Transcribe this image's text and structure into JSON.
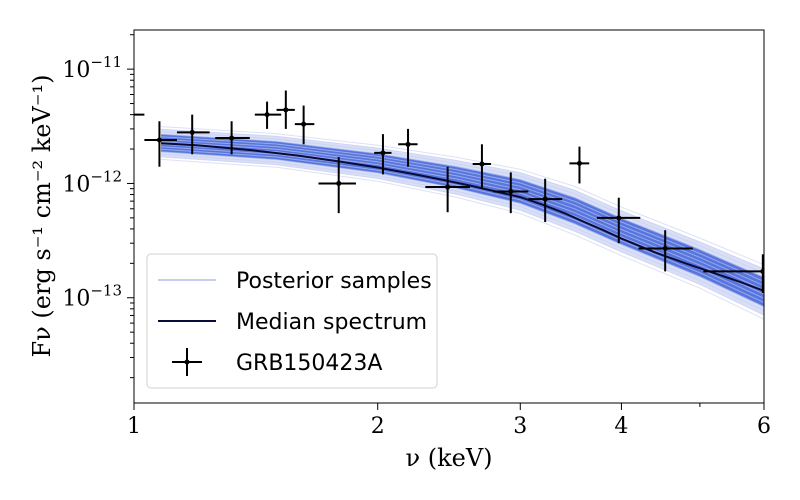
{
  "chart_data": {
    "type": "scatter",
    "title": "",
    "xlabel": "ν (keV)",
    "ylabel": "Fν (erg s⁻¹ cm⁻² keV⁻¹)",
    "xscale": "log",
    "yscale": "log",
    "xlim": [
      1,
      6
    ],
    "ylim": [
      1.2e-14,
      2.2e-11
    ],
    "x_ticks": [
      {
        "value": 1,
        "label": "1"
      },
      {
        "value": 2,
        "label": "2"
      },
      {
        "value": 3,
        "label": "3"
      },
      {
        "value": 4,
        "label": "4"
      },
      {
        "value": 6,
        "label": "6"
      }
    ],
    "y_ticks": [
      {
        "value": 1e-11,
        "base": "10",
        "exp": "−11"
      },
      {
        "value": 1e-12,
        "base": "10",
        "exp": "−12"
      },
      {
        "value": 1e-13,
        "base": "10",
        "exp": "−13"
      }
    ],
    "legend": {
      "position": "lower-left",
      "entries": [
        {
          "label": "Posterior samples",
          "kind": "band",
          "color": "#aab7ee"
        },
        {
          "label": "Median spectrum",
          "kind": "line",
          "color": "#0b0b3a"
        },
        {
          "label": "GRB150423A",
          "kind": "errorbar",
          "color": "#000000"
        }
      ]
    },
    "series": [
      {
        "name": "Median spectrum",
        "color": "#0b0b3a",
        "x": [
          1.08,
          1.2,
          1.4,
          1.6,
          1.8,
          2.0,
          2.2,
          2.4,
          2.6,
          2.8,
          3.0,
          3.2,
          3.4,
          3.6,
          3.8,
          4.0,
          4.4,
          4.8,
          5.2,
          5.6,
          6.0
        ],
        "y": [
          2.25e-12,
          2.15e-12,
          1.95e-12,
          1.75e-12,
          1.55e-12,
          1.38e-12,
          1.22e-12,
          1.08e-12,
          9.6e-13,
          8.5e-13,
          7.6e-13,
          6.5e-13,
          5.5e-13,
          4.6e-13,
          3.9e-13,
          3.3e-13,
          2.5e-13,
          2e-13,
          1.65e-13,
          1.38e-13,
          1.15e-13
        ]
      },
      {
        "name": "Posterior samples",
        "color": "#3f63d9",
        "x": [
          1.08,
          1.5,
          2.0,
          2.5,
          3.0,
          3.5,
          4.0,
          5.0,
          6.0
        ],
        "y_low": [
          1.7e-12,
          1.45e-12,
          1.1e-12,
          8e-13,
          5.8e-13,
          3.8e-13,
          2.5e-13,
          1.3e-13,
          7e-14
        ],
        "y_high": [
          3e-12,
          2.6e-12,
          2.05e-12,
          1.6e-12,
          1.25e-12,
          8.8e-13,
          5.8e-13,
          3.1e-13,
          1.8e-13
        ]
      },
      {
        "name": "GRB150423A",
        "color": "#000000",
        "points": [
          {
            "x": 0.99,
            "xlo": 0.93,
            "xhi": 1.03,
            "y": 4e-12,
            "ylo": 4e-12,
            "yhi": 4e-12
          },
          {
            "x": 1.075,
            "xlo": 1.03,
            "xhi": 1.13,
            "y": 2.4e-12,
            "ylo": 1.4e-12,
            "yhi": 3.5e-12
          },
          {
            "x": 1.18,
            "xlo": 1.13,
            "xhi": 1.24,
            "y": 2.8e-12,
            "ylo": 1.8e-12,
            "yhi": 4e-12
          },
          {
            "x": 1.32,
            "xlo": 1.26,
            "xhi": 1.39,
            "y": 2.5e-12,
            "ylo": 1.8e-12,
            "yhi": 3.5e-12
          },
          {
            "x": 1.46,
            "xlo": 1.41,
            "xhi": 1.52,
            "y": 4e-12,
            "ylo": 3e-12,
            "yhi": 5.2e-12
          },
          {
            "x": 1.54,
            "xlo": 1.5,
            "xhi": 1.58,
            "y": 4.4e-12,
            "ylo": 3e-12,
            "yhi": 6.5e-12
          },
          {
            "x": 1.62,
            "xlo": 1.58,
            "xhi": 1.67,
            "y": 3.3e-12,
            "ylo": 2.2e-12,
            "yhi": 4.8e-12
          },
          {
            "x": 1.79,
            "xlo": 1.69,
            "xhi": 1.88,
            "y": 1e-12,
            "ylo": 5.5e-13,
            "yhi": 1.7e-12
          },
          {
            "x": 2.03,
            "xlo": 1.98,
            "xhi": 2.08,
            "y": 1.85e-12,
            "ylo": 1.2e-12,
            "yhi": 2.7e-12
          },
          {
            "x": 2.18,
            "xlo": 2.12,
            "xhi": 2.24,
            "y": 2.2e-12,
            "ylo": 1.4e-12,
            "yhi": 3e-12
          },
          {
            "x": 2.44,
            "xlo": 2.29,
            "xhi": 2.6,
            "y": 9.3e-13,
            "ylo": 5.6e-13,
            "yhi": 1.4e-12
          },
          {
            "x": 2.69,
            "xlo": 2.62,
            "xhi": 2.76,
            "y": 1.48e-12,
            "ylo": 9e-13,
            "yhi": 2.2e-12
          },
          {
            "x": 2.92,
            "xlo": 2.78,
            "xhi": 3.07,
            "y": 8.5e-13,
            "ylo": 5.5e-13,
            "yhi": 1.25e-12
          },
          {
            "x": 3.22,
            "xlo": 3.07,
            "xhi": 3.38,
            "y": 7.3e-13,
            "ylo": 4.6e-13,
            "yhi": 1.1e-12
          },
          {
            "x": 3.55,
            "xlo": 3.45,
            "xhi": 3.65,
            "y": 1.5e-12,
            "ylo": 1e-12,
            "yhi": 2.1e-12
          },
          {
            "x": 3.97,
            "xlo": 3.73,
            "xhi": 4.22,
            "y": 5e-13,
            "ylo": 3e-13,
            "yhi": 7.5e-13
          },
          {
            "x": 4.53,
            "xlo": 4.2,
            "xhi": 4.9,
            "y": 2.7e-13,
            "ylo": 1.7e-13,
            "yhi": 3.9e-13
          },
          {
            "x": 5.98,
            "xlo": 5.05,
            "xhi": 6.1,
            "y": 1.7e-13,
            "ylo": 1.1e-13,
            "yhi": 2.4e-13
          }
        ]
      }
    ]
  }
}
